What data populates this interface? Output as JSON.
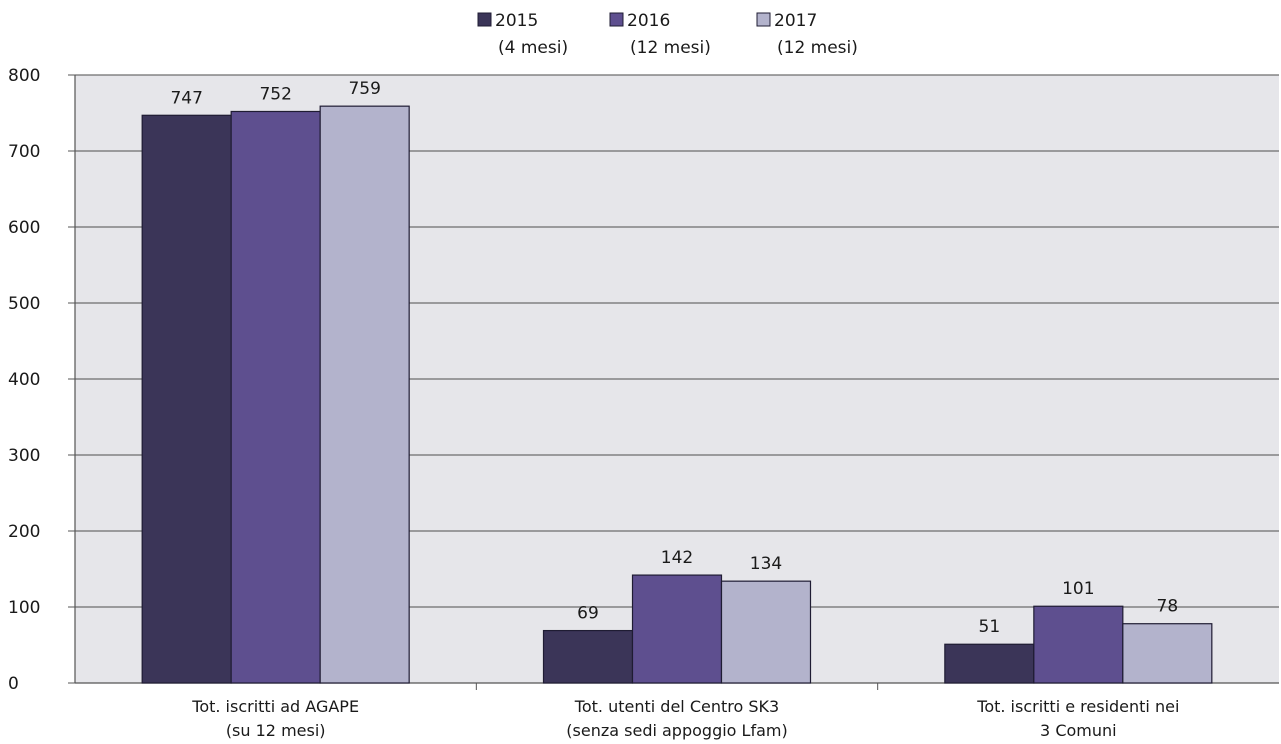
{
  "chart_data": {
    "type": "bar",
    "categories": [
      [
        "Tot. iscritti ad AGAPE",
        "(su 12 mesi)"
      ],
      [
        "Tot. utenti del Centro SK3",
        "(senza sedi appoggio Lfam)"
      ],
      [
        "Tot. iscritti e  residenti nei",
        "3 Comuni"
      ]
    ],
    "series": [
      {
        "name": "2015",
        "sublabel": "(4 mesi)",
        "values": [
          747,
          69,
          51
        ]
      },
      {
        "name": "2016",
        "sublabel": "(12 mesi)",
        "values": [
          752,
          142,
          101
        ]
      },
      {
        "name": "2017",
        "sublabel": "(12 mesi)",
        "values": [
          759,
          134,
          78
        ]
      }
    ],
    "colors": [
      "#3b3558",
      "#5e4f8f",
      "#b3b3cc"
    ],
    "ylim": [
      0,
      800
    ],
    "yticks": [
      0,
      100,
      200,
      300,
      400,
      500,
      600,
      700,
      800
    ],
    "grid": true,
    "legend_position": "top",
    "plot_background": "#e6e6ea",
    "title": "",
    "xlabel": "",
    "ylabel": ""
  }
}
